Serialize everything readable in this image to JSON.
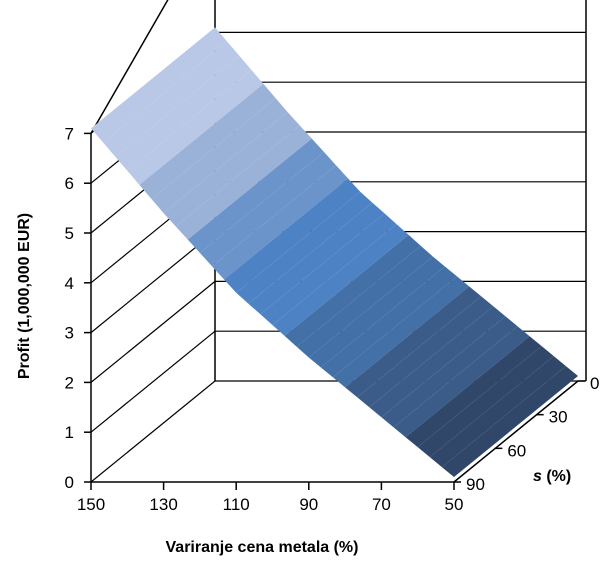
{
  "chart_data": {
    "type": "surface",
    "xlabel": "Variranje cena metala (%)",
    "ylabel": "Profit (1,000,000 EUR)",
    "zlabel_var": "s",
    "zlabel_unit": " (%)",
    "x_ticks": [
      "150",
      "130",
      "110",
      "90",
      "70",
      "50"
    ],
    "y_ticks": [
      "0",
      "1",
      "2",
      "3",
      "4",
      "5",
      "6",
      "7"
    ],
    "s_ticks": [
      "0",
      "30",
      "60",
      "90"
    ],
    "x": [
      150,
      130,
      110,
      90,
      70,
      50
    ],
    "s": [
      0,
      30,
      60,
      90
    ],
    "values": [
      [
        7.1,
        5.4,
        3.8,
        2.5,
        1.3,
        0.1
      ],
      [
        7.1,
        5.4,
        3.8,
        2.5,
        1.3,
        0.1
      ],
      [
        7.1,
        5.4,
        3.8,
        2.5,
        1.3,
        0.1
      ],
      [
        7.1,
        5.4,
        3.8,
        2.5,
        1.3,
        0.1
      ]
    ],
    "ylim": [
      0,
      7
    ],
    "grid": true,
    "colors": [
      "#30476a",
      "#3b5c89",
      "#4470a8",
      "#4d83c4",
      "#6a94ca",
      "#9ab1d8",
      "#b8c8e6",
      "#d1dcf0"
    ]
  }
}
